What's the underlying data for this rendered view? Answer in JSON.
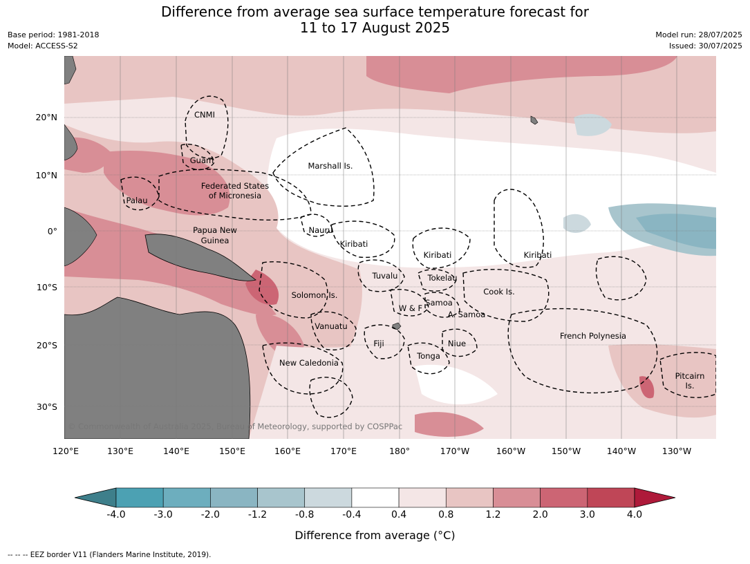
{
  "title_line1": "Difference from average sea surface temperature forecast for",
  "title_line2": "11 to 17 August 2025",
  "meta": {
    "base_period": "Base period: 1981-2018",
    "model": "Model: ACCESS-S2",
    "model_run": "Model run: 28/07/2025",
    "issued": "Issued: 30/07/2025"
  },
  "axes": {
    "lon_ticks": [
      "120°E",
      "130°E",
      "140°E",
      "150°E",
      "160°E",
      "170°E",
      "180°",
      "170°W",
      "160°W",
      "150°W",
      "140°W",
      "130°W"
    ],
    "lat_ticks": [
      "20°N",
      "10°N",
      "0°",
      "10°S",
      "20°S",
      "30°S"
    ]
  },
  "regions": [
    {
      "text": "CNMI"
    },
    {
      "text": "Guam"
    },
    {
      "text": "Marshall Is."
    },
    {
      "text": "Federated States"
    },
    {
      "text": "of Micronesia"
    },
    {
      "text": "Palau"
    },
    {
      "text": "Nauru"
    },
    {
      "text": "Papua New"
    },
    {
      "text": "Guinea"
    },
    {
      "text": "Kiribati"
    },
    {
      "text": "Kiribati"
    },
    {
      "text": "Kiribati"
    },
    {
      "text": "Tuvalu"
    },
    {
      "text": "Tokelau"
    },
    {
      "text": "Cook Is."
    },
    {
      "text": "Solomon Is."
    },
    {
      "text": "Samoa"
    },
    {
      "text": "W & F"
    },
    {
      "text": "A. Samoa"
    },
    {
      "text": "Vanuatu"
    },
    {
      "text": "Fiji"
    },
    {
      "text": "Niue"
    },
    {
      "text": "Tonga"
    },
    {
      "text": "French Polynesia"
    },
    {
      "text": "New Caledonia"
    },
    {
      "text": "Pitcairn"
    },
    {
      "text": "Is."
    }
  ],
  "copyright": "© Commonwealth of Australia 2025, Bureau of Meteorology, supported by COSPPac",
  "colorbar": {
    "labels": [
      "-4.0",
      "-3.0",
      "-2.0",
      "-1.2",
      "-0.8",
      "-0.4",
      "0.4",
      "0.8",
      "1.2",
      "2.0",
      "3.0",
      "4.0"
    ],
    "colors": [
      "#3e7f8b",
      "#4ca1b3",
      "#6daebe",
      "#8ab5c2",
      "#a8c5cd",
      "#ccd9de",
      "#ffffff",
      "#f4e6e6",
      "#e8c5c3",
      "#d88e96",
      "#cc6574",
      "#bf4657",
      "#ae1a3a"
    ],
    "title": "Difference from average (°C)"
  },
  "footnote": "--  --  -- EEZ border V11 (Flanders Marine Institute, 2019)."
}
